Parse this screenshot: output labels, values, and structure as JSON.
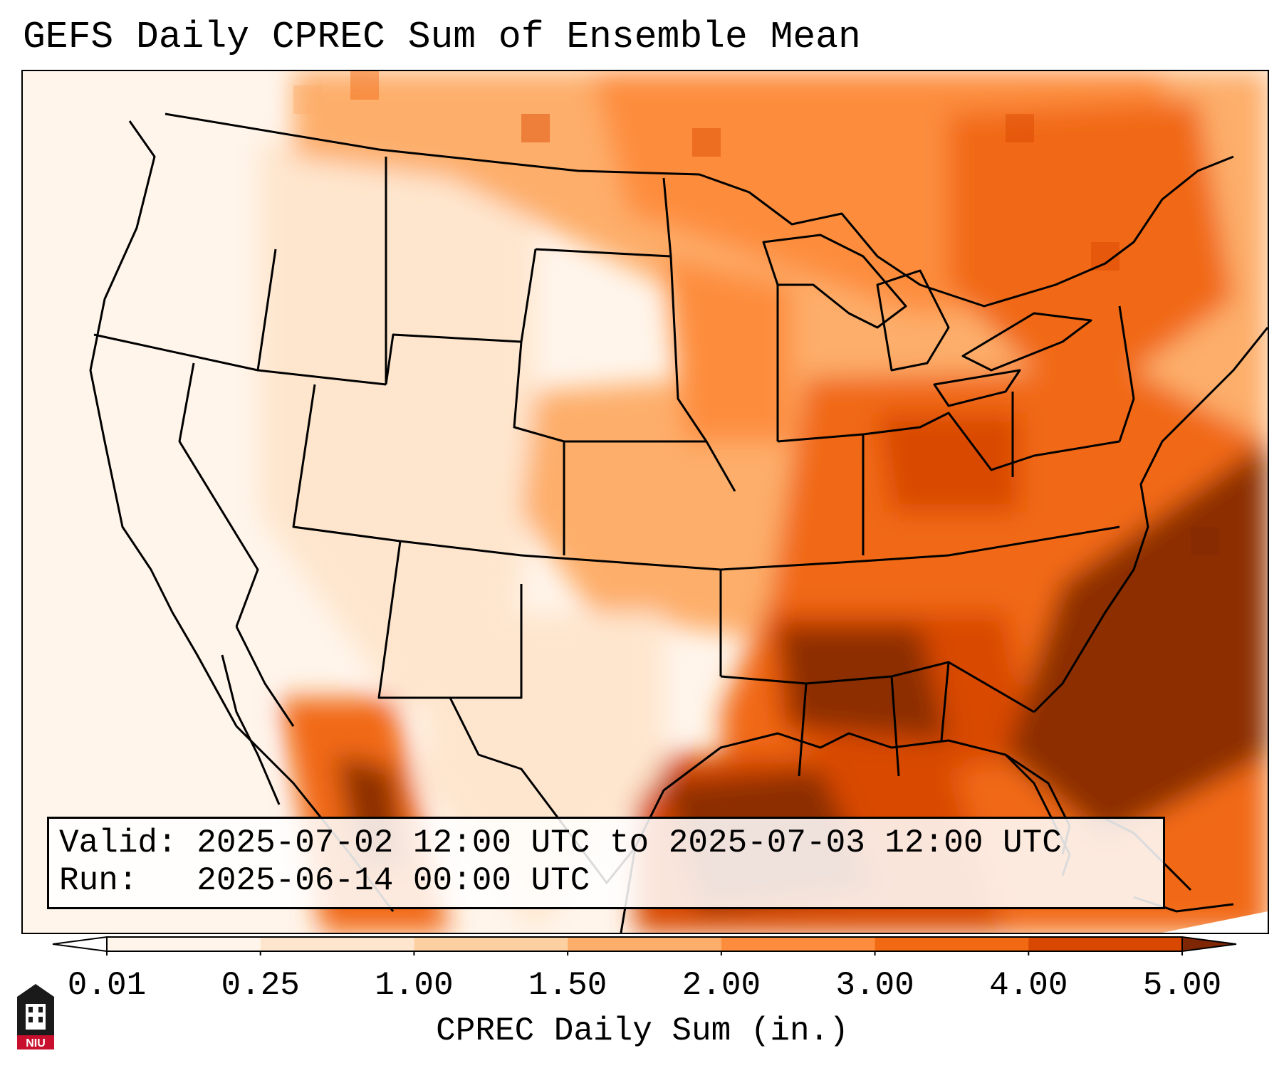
{
  "title": "GEFS Daily CPREC Sum of Ensemble Mean",
  "info": {
    "valid_label": "Valid:",
    "valid_value": "2025-07-02 12:00 UTC to 2025-07-03 12:00 UTC",
    "run_label": "Run:",
    "run_value": "2025-06-14 00:00 UTC"
  },
  "colorbar": {
    "label": "CPREC Daily Sum (in.)",
    "ticks": [
      "0.01",
      "0.25",
      "1.00",
      "1.50",
      "2.00",
      "3.00",
      "4.00",
      "5.00"
    ],
    "colors": [
      "#fff5eb",
      "#fee6ce",
      "#fdd0a2",
      "#fdae6b",
      "#fd8d3c",
      "#f16913",
      "#d94801",
      "#8c2d04"
    ],
    "under_color": "#ffffff",
    "over_color": "#7f2704"
  },
  "logo": {
    "text": "NIU",
    "color": "#c8102e"
  }
}
